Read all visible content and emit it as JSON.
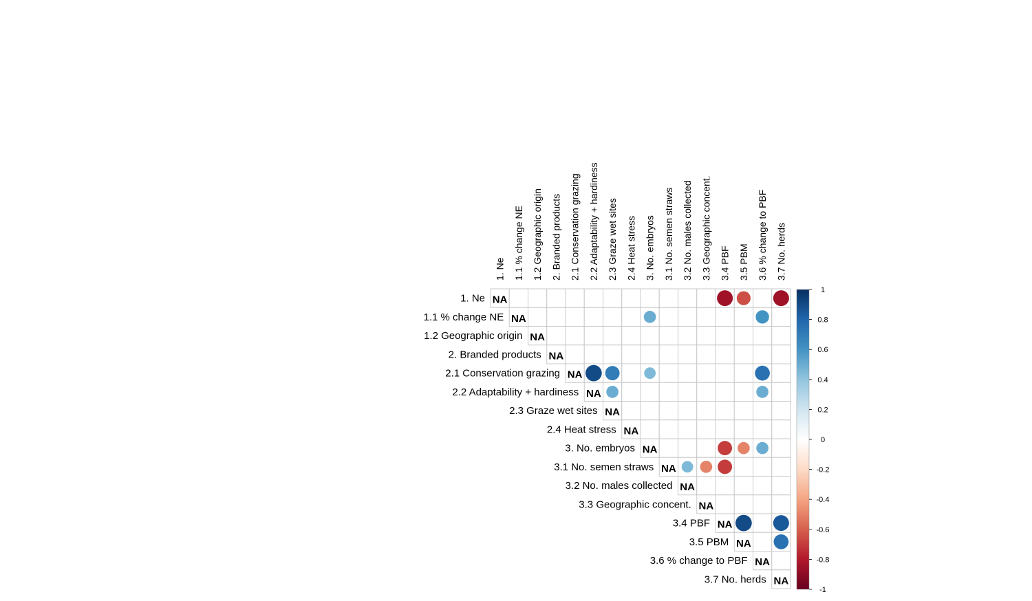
{
  "chart_data": {
    "type": "heatmap",
    "style": "correlation-circles-upper-triangle",
    "variables": [
      "1. Ne",
      "1.1 % change NE",
      "1.2 Geographic origin",
      "2. Branded products",
      "2.1 Conservation grazing",
      "2.2 Adaptability + hardiness",
      "2.3 Graze wet sites",
      "2.4 Heat stress",
      "3. No. embryos",
      "3.1 No. semen straws",
      "3.2 No. males collected",
      "3.3 Geographic concent.",
      "3.4 PBF",
      "3.5 PBM",
      "3.6 % change to PBF",
      "3.7 No. herds"
    ],
    "diagonal_label": "NA",
    "cells": [
      {
        "row": 0,
        "col": 12,
        "value": -0.85
      },
      {
        "row": 0,
        "col": 13,
        "value": -0.65
      },
      {
        "row": 0,
        "col": 15,
        "value": -0.85
      },
      {
        "row": 1,
        "col": 8,
        "value": 0.5
      },
      {
        "row": 1,
        "col": 14,
        "value": 0.6
      },
      {
        "row": 4,
        "col": 5,
        "value": 0.9
      },
      {
        "row": 4,
        "col": 6,
        "value": 0.7
      },
      {
        "row": 4,
        "col": 8,
        "value": 0.45
      },
      {
        "row": 4,
        "col": 14,
        "value": 0.75
      },
      {
        "row": 5,
        "col": 6,
        "value": 0.5
      },
      {
        "row": 5,
        "col": 14,
        "value": 0.5
      },
      {
        "row": 8,
        "col": 12,
        "value": -0.7
      },
      {
        "row": 8,
        "col": 13,
        "value": -0.5
      },
      {
        "row": 8,
        "col": 14,
        "value": 0.5
      },
      {
        "row": 9,
        "col": 10,
        "value": 0.45
      },
      {
        "row": 9,
        "col": 11,
        "value": -0.5
      },
      {
        "row": 9,
        "col": 12,
        "value": -0.7
      },
      {
        "row": 12,
        "col": 13,
        "value": 0.9
      },
      {
        "row": 12,
        "col": 15,
        "value": 0.85
      },
      {
        "row": 13,
        "col": 15,
        "value": 0.75
      }
    ],
    "colorbar": {
      "range": [
        -1,
        1
      ],
      "ticks": [
        "1",
        "0.8",
        "0.6",
        "0.4",
        "0.2",
        "0",
        "-0.2",
        "-0.4",
        "-0.6",
        "-0.8",
        "-1"
      ],
      "colors": [
        "#67001f",
        "#b2182b",
        "#d6604d",
        "#f4a582",
        "#fddbc7",
        "#ffffff",
        "#d1e5f0",
        "#92c5de",
        "#4393c3",
        "#2166ac",
        "#053061"
      ]
    }
  }
}
